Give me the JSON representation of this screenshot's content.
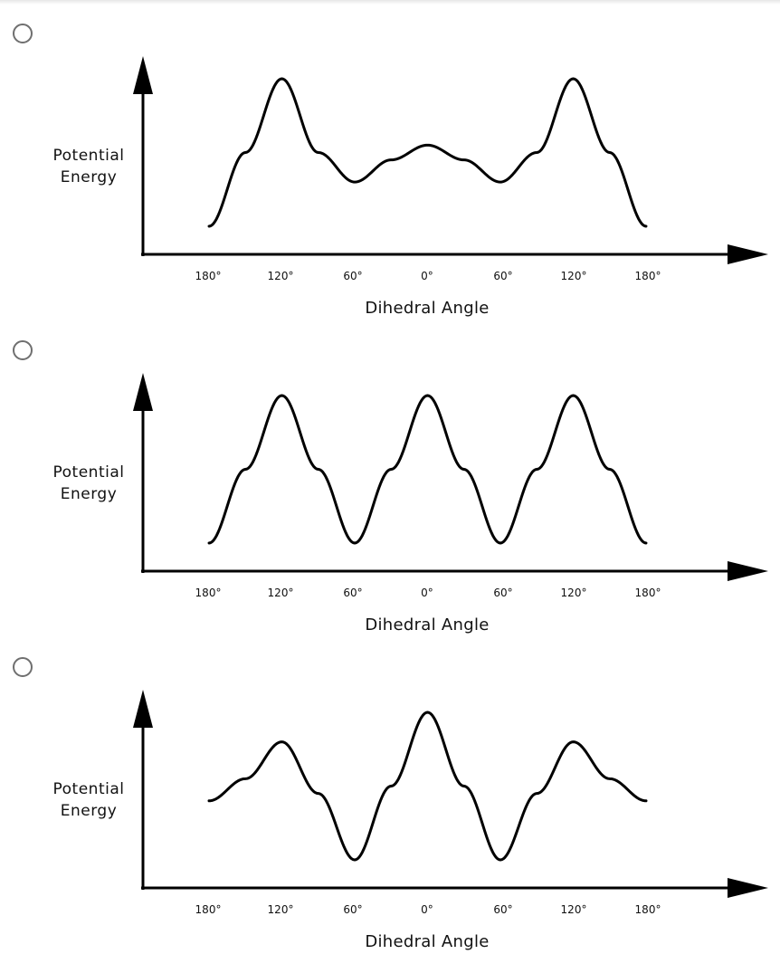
{
  "options": [
    {
      "chart_data": {
        "type": "line",
        "ylabel": "Potential Energy",
        "xlabel": "Dihedral Angle",
        "tick_labels": [
          "180°",
          "120°",
          "60°",
          "0°",
          "60°",
          "120°",
          "180°"
        ],
        "x": [
          -180,
          -150,
          -120,
          -90,
          -60,
          -30,
          0,
          30,
          60,
          90,
          120,
          150,
          180
        ],
        "y": [
          0.0,
          0.5,
          1.0,
          0.5,
          0.3,
          0.45,
          0.55,
          0.45,
          0.3,
          0.5,
          1.0,
          0.5,
          0.0
        ],
        "ylim": [
          0,
          1.1
        ],
        "grid": false
      }
    },
    {
      "chart_data": {
        "type": "line",
        "ylabel": "Potential Energy",
        "xlabel": "Dihedral Angle",
        "tick_labels": [
          "180°",
          "120°",
          "60°",
          "0°",
          "60°",
          "120°",
          "180°"
        ],
        "x": [
          -180,
          -150,
          -120,
          -90,
          -60,
          -30,
          0,
          30,
          60,
          90,
          120,
          150,
          180
        ],
        "y": [
          0.0,
          0.5,
          1.0,
          0.5,
          0.0,
          0.5,
          1.0,
          0.5,
          0.0,
          0.5,
          1.0,
          0.5,
          0.0
        ],
        "ylim": [
          0,
          1.1
        ],
        "grid": false
      }
    },
    {
      "chart_data": {
        "type": "line",
        "ylabel": "Potential Energy",
        "xlabel": "Dihedral Angle",
        "tick_labels": [
          "180°",
          "120°",
          "60°",
          "0°",
          "60°",
          "120°",
          "180°"
        ],
        "x": [
          -180,
          -150,
          -120,
          -90,
          -60,
          -30,
          0,
          30,
          60,
          90,
          120,
          150,
          180
        ],
        "y": [
          0.4,
          0.55,
          0.8,
          0.45,
          0.0,
          0.5,
          1.0,
          0.5,
          0.0,
          0.45,
          0.8,
          0.55,
          0.4
        ],
        "ylim": [
          0,
          1.1
        ],
        "grid": false
      }
    }
  ]
}
